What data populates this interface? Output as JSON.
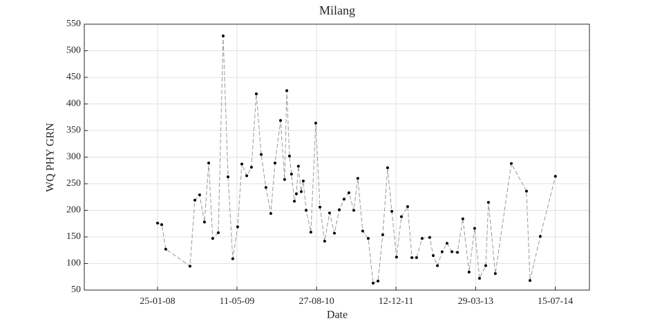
{
  "chart_data": {
    "type": "line",
    "title": "Milang",
    "xlabel": "Date",
    "ylabel": "WQ PHY GRN",
    "x": [
      "2008-01-25",
      "2008-02-19",
      "2008-03-14",
      "2008-08-05",
      "2008-09-03",
      "2008-10-01",
      "2008-10-30",
      "2008-11-24",
      "2008-12-18",
      "2009-01-20",
      "2009-02-18",
      "2009-03-19",
      "2009-04-16",
      "2009-05-15",
      "2009-06-09",
      "2009-07-08",
      "2009-08-05",
      "2009-09-03",
      "2009-10-02",
      "2009-10-30",
      "2009-11-28",
      "2009-12-23",
      "2010-01-25",
      "2010-02-18",
      "2010-03-03",
      "2010-03-19",
      "2010-03-31",
      "2010-04-17",
      "2010-04-29",
      "2010-05-11",
      "2010-05-28",
      "2010-06-09",
      "2010-06-26",
      "2010-07-24",
      "2010-08-22",
      "2010-09-16",
      "2010-10-14",
      "2010-11-12",
      "2010-12-11",
      "2011-01-09",
      "2011-02-06",
      "2011-03-07",
      "2011-04-05",
      "2011-04-29",
      "2011-05-28",
      "2011-06-30",
      "2011-07-29",
      "2011-08-27",
      "2011-09-24",
      "2011-10-23",
      "2011-11-17",
      "2011-12-15",
      "2012-01-13",
      "2012-02-19",
      "2012-03-15",
      "2012-04-12",
      "2012-05-15",
      "2012-06-29",
      "2012-07-20",
      "2012-08-14",
      "2012-09-11",
      "2012-10-10",
      "2012-11-08",
      "2012-12-11",
      "2013-01-12",
      "2013-02-18",
      "2013-03-23",
      "2013-04-21",
      "2013-05-28",
      "2013-06-13",
      "2013-07-24",
      "2013-10-27",
      "2014-01-25",
      "2014-02-15",
      "2014-04-17",
      "2014-07-16"
    ],
    "values": [
      176,
      173,
      127,
      95,
      219,
      229,
      178,
      289,
      147,
      158,
      528,
      263,
      109,
      169,
      287,
      265,
      281,
      419,
      305,
      243,
      194,
      289,
      369,
      258,
      425,
      302,
      268,
      217,
      231,
      283,
      235,
      255,
      200,
      159,
      364,
      206,
      142,
      195,
      157,
      201,
      221,
      233,
      200,
      260,
      161,
      147,
      63,
      67,
      154,
      280,
      198,
      112,
      188,
      207,
      111,
      111,
      147,
      149,
      115,
      96,
      122,
      138,
      122,
      121,
      184,
      84,
      166,
      72,
      96,
      215,
      81,
      288,
      236,
      68,
      151,
      264
    ],
    "color": "#999999",
    "marker_color": "#000000",
    "xlim": [
      "2006-11-16",
      "2015-02-03"
    ],
    "xticks": [
      {
        "value": "2008-01-25",
        "label": "25-01-08"
      },
      {
        "value": "2009-05-11",
        "label": "11-05-09"
      },
      {
        "value": "2010-08-27",
        "label": "27-08-10"
      },
      {
        "value": "2011-12-12",
        "label": "12-12-11"
      },
      {
        "value": "2013-03-29",
        "label": "29-03-13"
      },
      {
        "value": "2014-07-15",
        "label": "15-07-14"
      }
    ],
    "ylim": [
      50,
      550
    ],
    "yticks": [
      50,
      100,
      150,
      200,
      250,
      300,
      350,
      400,
      450,
      500,
      550
    ],
    "grid": true
  }
}
